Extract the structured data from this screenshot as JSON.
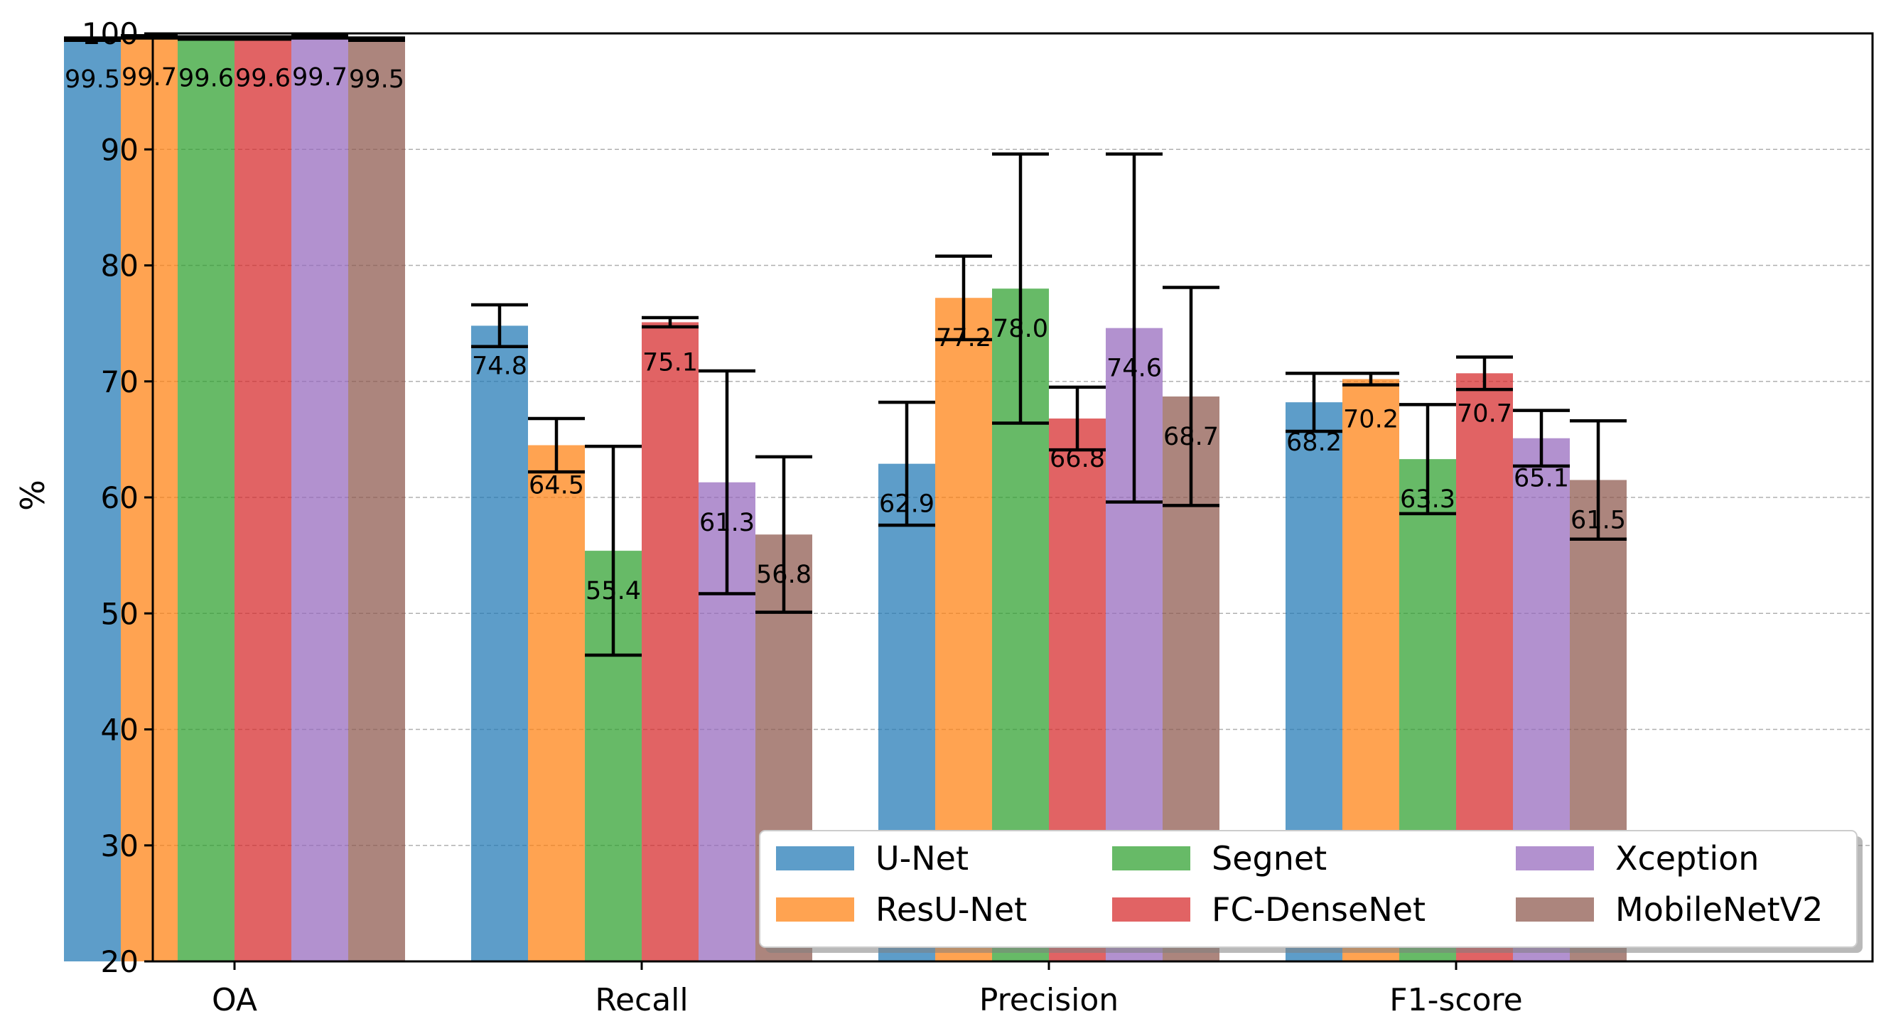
{
  "chart_data": {
    "type": "bar",
    "title": "",
    "xlabel": "",
    "ylabel": "%",
    "ylim": [
      20,
      100
    ],
    "yticks": [
      "20",
      "30",
      "40",
      "50",
      "60",
      "70",
      "80",
      "90",
      "100"
    ],
    "grid": "horizontal dashed",
    "legend_position": "bottom-right",
    "categories": [
      "OA",
      "Recall",
      "Precision",
      "F1-score"
    ],
    "series": [
      {
        "name": "U-Net",
        "color": "#1f77b4",
        "values": [
          99.5,
          74.8,
          62.9,
          68.2
        ],
        "labels": [
          "99.5",
          "74.8",
          "62.9",
          "68.2"
        ],
        "err": [
          0.1,
          1.8,
          5.3,
          2.5
        ]
      },
      {
        "name": "ResU-Net",
        "color": "#ff7f0e",
        "values": [
          99.7,
          64.5,
          77.2,
          70.2
        ],
        "labels": [
          "99.7",
          "64.5",
          "77.2",
          "70.2"
        ],
        "err": [
          0.1,
          2.3,
          3.6,
          0.5
        ]
      },
      {
        "name": "Segnet",
        "color": "#2ca02c",
        "values": [
          99.6,
          55.4,
          78.0,
          63.3
        ],
        "labels": [
          "99.6",
          "55.4",
          "78.0",
          "63.3"
        ],
        "err": [
          0.1,
          9.0,
          11.6,
          4.7
        ]
      },
      {
        "name": "FC-DenseNet",
        "color": "#d62728",
        "values": [
          99.6,
          75.1,
          66.8,
          70.7
        ],
        "labels": [
          "99.6",
          "75.1",
          "66.8",
          "70.7"
        ],
        "err": [
          0.1,
          0.4,
          2.7,
          1.4
        ]
      },
      {
        "name": "Xception",
        "color": "#9467bd",
        "values": [
          99.7,
          61.3,
          74.6,
          65.1
        ],
        "labels": [
          "99.7",
          "61.3",
          "74.6",
          "65.1"
        ],
        "err": [
          0.1,
          9.6,
          15.0,
          2.4
        ]
      },
      {
        "name": "MobileNetV2",
        "color": "#8c564b",
        "values": [
          99.5,
          56.8,
          68.7,
          61.5
        ],
        "labels": [
          "99.5",
          "56.8",
          "68.7",
          "61.5"
        ],
        "err": [
          0.1,
          6.7,
          9.4,
          5.1
        ]
      }
    ]
  }
}
